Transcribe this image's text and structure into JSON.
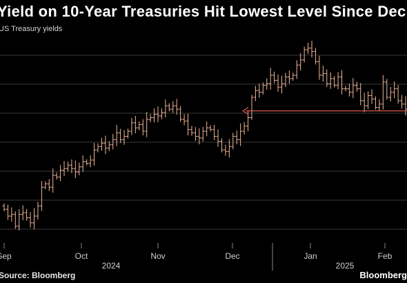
{
  "title": "Yield on 10-Year Treasuries Hit Lowest Level Since Dec",
  "subtitle": "US Treasury yields",
  "source": "Source: Bloomberg",
  "brand": "Bloomberg",
  "colors": {
    "background": "#000000",
    "bars": "#f0b89a",
    "arrow": "#e05a4a",
    "grid": "#3a3a3a"
  },
  "chart_data": {
    "type": "line",
    "style": "ohlc-bars",
    "series": [
      {
        "values": [
          3.83,
          3.79,
          3.8,
          3.73,
          3.8,
          3.81,
          3.78,
          3.75,
          3.79,
          3.85,
          3.96,
          3.98,
          3.96,
          4.03,
          4.02,
          4.06,
          4.07,
          4.09,
          4.07,
          4.05,
          4.08,
          4.11,
          4.1,
          4.12,
          4.18,
          4.2,
          4.22,
          4.19,
          4.21,
          4.24,
          4.28,
          4.24,
          4.26,
          4.29,
          4.34,
          4.31,
          4.33,
          4.29,
          4.36,
          4.37,
          4.39,
          4.38,
          4.4,
          4.44,
          4.42,
          4.44,
          4.42,
          4.36,
          4.35,
          4.3,
          4.28,
          4.26,
          4.25,
          4.29,
          4.31,
          4.3,
          4.26,
          4.23,
          4.18,
          4.17,
          4.2,
          4.26,
          4.24,
          4.29,
          4.32,
          4.37,
          4.49,
          4.53,
          4.52,
          4.56,
          4.57,
          4.62,
          4.59,
          4.55,
          4.57,
          4.61,
          4.6,
          4.62,
          4.68,
          4.71,
          4.77,
          4.78,
          4.76,
          4.7,
          4.62,
          4.63,
          4.57,
          4.6,
          4.56,
          4.61,
          4.54,
          4.54,
          4.52,
          4.56,
          4.54,
          4.47,
          4.44,
          4.5,
          4.48,
          4.43,
          4.45,
          4.58,
          4.49,
          4.52,
          4.54,
          4.47,
          4.45,
          4.42
        ]
      }
    ],
    "x_tick_labels": [
      "Sep",
      "Oct",
      "Nov",
      "Dec",
      "Jan",
      "Feb"
    ],
    "year_labels": [
      "2024",
      "2025"
    ],
    "annotation": "arrow pointing to December low level",
    "arrow_level": 4.41,
    "ylim": [
      3.66,
      4.86
    ],
    "grid": true
  }
}
